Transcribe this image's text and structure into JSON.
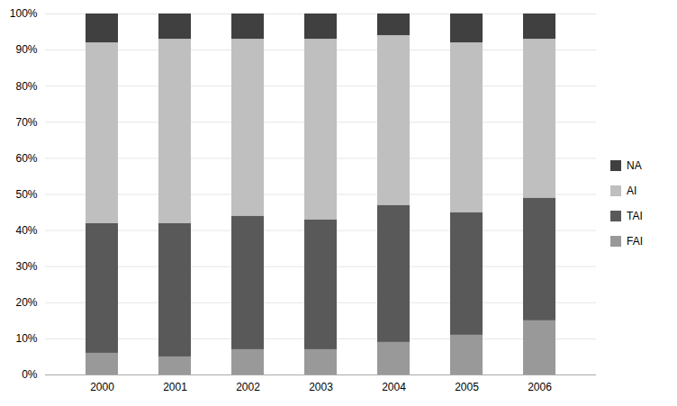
{
  "chart_data": {
    "type": "bar",
    "stacked": true,
    "categories": [
      "2000",
      "2001",
      "2002",
      "2003",
      "2004",
      "2005",
      "2006"
    ],
    "series": [
      {
        "name": "FAI",
        "color": "#999999",
        "values": [
          0.06,
          0.05,
          0.07,
          0.07,
          0.09,
          0.11,
          0.15
        ]
      },
      {
        "name": "TAI",
        "color": "#595959",
        "values": [
          0.36,
          0.37,
          0.37,
          0.36,
          0.38,
          0.34,
          0.34
        ]
      },
      {
        "name": "AI",
        "color": "#bfbfbf",
        "values": [
          0.5,
          0.51,
          0.49,
          0.5,
          0.47,
          0.47,
          0.44
        ]
      },
      {
        "name": "NA",
        "color": "#404040",
        "values": [
          0.08,
          0.07,
          0.07,
          0.07,
          0.06,
          0.08,
          0.07
        ]
      }
    ],
    "ylim": [
      0,
      1
    ],
    "yticks": [
      {
        "value": 0,
        "label": "0%"
      },
      {
        "value": 0.1,
        "label": "10%"
      },
      {
        "value": 0.2,
        "label": "20%"
      },
      {
        "value": 0.3,
        "label": "30%"
      },
      {
        "value": 0.4,
        "label": "40%"
      },
      {
        "value": 0.5,
        "label": "50%"
      },
      {
        "value": 0.6,
        "label": "60%"
      },
      {
        "value": 0.7,
        "label": "70%"
      },
      {
        "value": 0.8,
        "label": "80%"
      },
      {
        "value": 0.9,
        "label": "90%"
      },
      {
        "value": 1.0,
        "label": "100%"
      }
    ],
    "grid": true,
    "legend": "right"
  }
}
